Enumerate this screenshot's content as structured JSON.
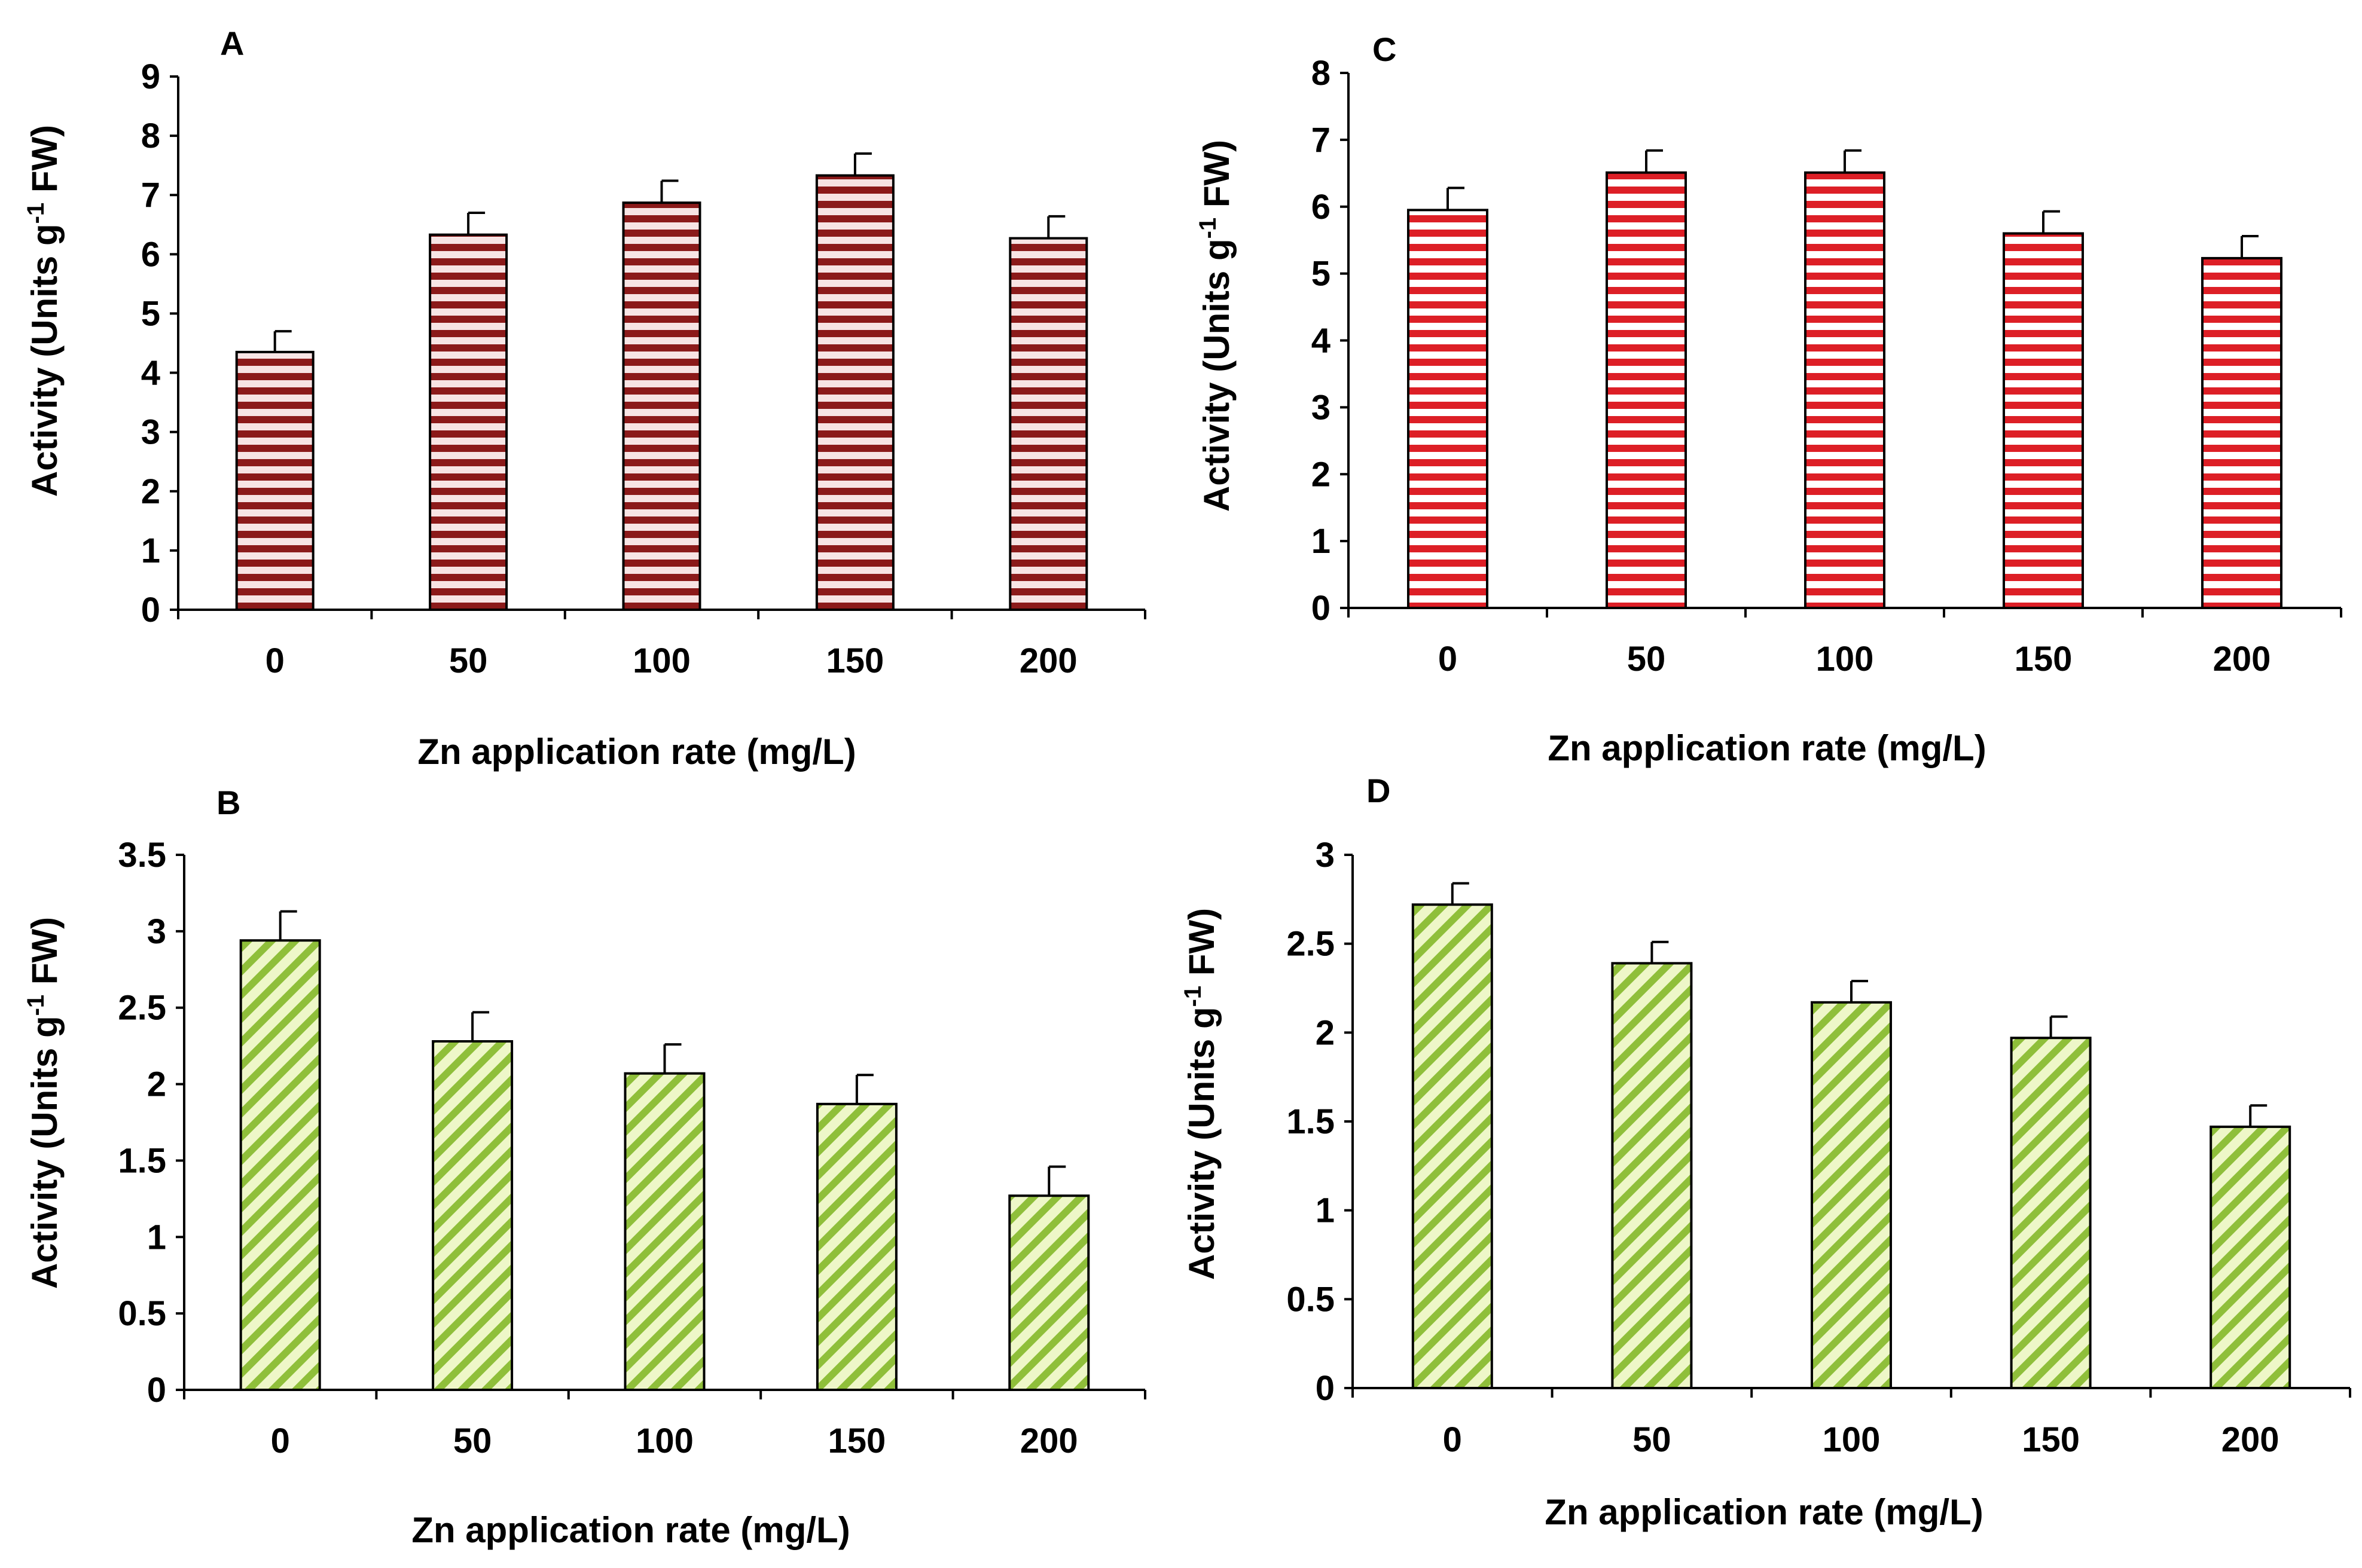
{
  "chart_data": [
    {
      "type": "bar",
      "panel": "A",
      "categories": [
        "0",
        "50",
        "100",
        "150",
        "200"
      ],
      "values": [
        4.35,
        6.33,
        6.87,
        7.33,
        6.27
      ],
      "errors": [
        0.35,
        0.37,
        0.37,
        0.37,
        0.37
      ],
      "ylim": [
        0,
        9
      ],
      "yticks": [
        "0",
        "1",
        "2",
        "3",
        "4",
        "5",
        "6",
        "7",
        "8",
        "9"
      ],
      "xlabel": "Zn application rate (mg/L)",
      "ylabel": "Activity (Units g",
      "ylabel_sup": "-1",
      "ylabel_end": " FW)",
      "pattern": "horizontal-stripes",
      "color": "#8b1a1a"
    },
    {
      "type": "bar",
      "panel": "B",
      "categories": [
        "0",
        "50",
        "100",
        "150",
        "200"
      ],
      "values": [
        2.94,
        2.28,
        2.07,
        1.87,
        1.27
      ],
      "errors": [
        0.19,
        0.19,
        0.19,
        0.19,
        0.19
      ],
      "ylim": [
        0,
        3.5
      ],
      "yticks": [
        "0",
        "0.5",
        "1",
        "1.5",
        "2",
        "2.5",
        "3",
        "3.5"
      ],
      "xlabel": "Zn application rate (mg/L)",
      "ylabel": "Activity (Units g",
      "ylabel_sup": "-1",
      "ylabel_end": " FW)",
      "pattern": "diagonal-stripes",
      "color": "#8fbf3a"
    },
    {
      "type": "bar",
      "panel": "C",
      "categories": [
        "0",
        "50",
        "100",
        "150",
        "200"
      ],
      "values": [
        5.95,
        6.51,
        6.51,
        5.6,
        5.23
      ],
      "errors": [
        0.33,
        0.33,
        0.33,
        0.33,
        0.33
      ],
      "ylim": [
        0,
        8
      ],
      "yticks": [
        "0",
        "1",
        "2",
        "3",
        "4",
        "5",
        "6",
        "7",
        "8"
      ],
      "xlabel": "Zn application rate (mg/L)",
      "ylabel": "Activity (Units g",
      "ylabel_sup": "-1",
      "ylabel_end": " FW)",
      "pattern": "horizontal-stripes",
      "color": "#dd1f26"
    },
    {
      "type": "bar",
      "panel": "D",
      "categories": [
        "0",
        "50",
        "100",
        "150",
        "200"
      ],
      "values": [
        2.72,
        2.39,
        2.17,
        1.97,
        1.47
      ],
      "errors": [
        0.12,
        0.12,
        0.12,
        0.12,
        0.12
      ],
      "ylim": [
        0,
        3
      ],
      "yticks": [
        "0",
        "0.5",
        "1",
        "1.5",
        "2",
        "2.5",
        "3"
      ],
      "xlabel": "Zn application rate (mg/L)",
      "ylabel": "Activity (Units g",
      "ylabel_sup": "-1",
      "ylabel_end": " FW)",
      "pattern": "diagonal-stripes",
      "color": "#8fbf3a"
    }
  ]
}
